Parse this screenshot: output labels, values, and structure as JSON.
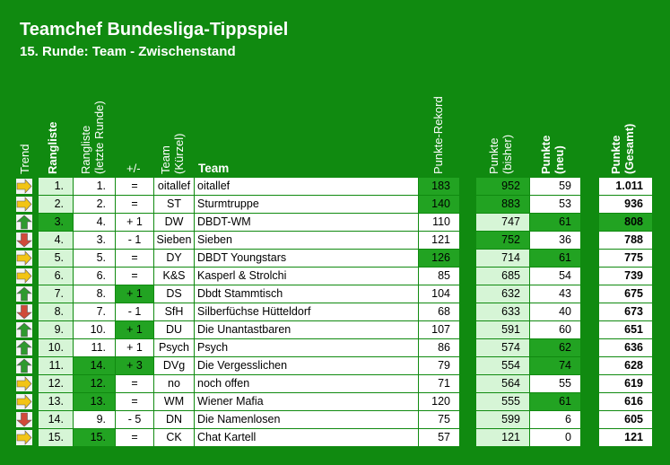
{
  "title": "Teamchef Bundesliga-Tippspiel",
  "subtitle": "15. Runde: Team - Zwischenstand",
  "headers": {
    "trend": "Trend",
    "rangliste": "Rangliste",
    "rangliste_letzte_1": "Rangliste",
    "rangliste_letzte_2": "(letzte Runde)",
    "plusminus": "+/-",
    "team_kuerzel_1": "Team",
    "team_kuerzel_2": "(Kürzel)",
    "team": "Team",
    "punkte_rekord": "Punkte-Rekord",
    "punkte_bisher_1": "Punkte",
    "punkte_bisher_2": "(bisher)",
    "punkte_neu_1": "Punkte",
    "punkte_neu_2": "(neu)",
    "punkte_gesamt_1": "Punkte",
    "punkte_gesamt_2": "(Gesamt)"
  },
  "colors": {
    "background": "#108a10",
    "light": "#d6f5d6",
    "white": "#ffffff",
    "highlight": "#22a322",
    "arrow_up": "#2e9a2e",
    "arrow_down": "#d04a3a",
    "arrow_same": "#f2c414"
  },
  "rows": [
    {
      "trend": "same",
      "rank": "1.",
      "last": "1.",
      "pm": "=",
      "short": "oitallef",
      "team": "oitallef",
      "rekord": "183",
      "bisher": "952",
      "neu": "59",
      "gesamt": "1.011",
      "hl": [
        "rekord",
        "bisher"
      ]
    },
    {
      "trend": "same",
      "rank": "2.",
      "last": "2.",
      "pm": "=",
      "short": "ST",
      "team": "Sturmtruppe",
      "rekord": "140",
      "bisher": "883",
      "neu": "53",
      "gesamt": "936",
      "hl": [
        "rekord",
        "bisher"
      ]
    },
    {
      "trend": "up",
      "rank": "3.",
      "last": "4.",
      "pm": "+ 1",
      "short": "DW",
      "team": "DBDT-WM",
      "rekord": "110",
      "bisher": "747",
      "neu": "61",
      "gesamt": "808",
      "hl": [
        "rank",
        "neu",
        "gesamt"
      ]
    },
    {
      "trend": "down",
      "rank": "4.",
      "last": "3.",
      "pm": "- 1",
      "short": "Sieben",
      "team": "Sieben",
      "rekord": "121",
      "bisher": "752",
      "neu": "36",
      "gesamt": "788",
      "hl": [
        "bisher"
      ]
    },
    {
      "trend": "same",
      "rank": "5.",
      "last": "5.",
      "pm": "=",
      "short": "DY",
      "team": "DBDT Youngstars",
      "rekord": "126",
      "bisher": "714",
      "neu": "61",
      "gesamt": "775",
      "hl": [
        "rekord",
        "neu"
      ]
    },
    {
      "trend": "same",
      "rank": "6.",
      "last": "6.",
      "pm": "=",
      "short": "K&S",
      "team": "Kasperl & Strolchi",
      "rekord": "85",
      "bisher": "685",
      "neu": "54",
      "gesamt": "739",
      "hl": []
    },
    {
      "trend": "up",
      "rank": "7.",
      "last": "8.",
      "pm": "+ 1",
      "short": "DS",
      "team": "Dbdt Stammtisch",
      "rekord": "104",
      "bisher": "632",
      "neu": "43",
      "gesamt": "675",
      "hl": [
        "pm"
      ]
    },
    {
      "trend": "down",
      "rank": "8.",
      "last": "7.",
      "pm": "- 1",
      "short": "SfH",
      "team": "Silberfüchse Hütteldorf",
      "rekord": "68",
      "bisher": "633",
      "neu": "40",
      "gesamt": "673",
      "hl": []
    },
    {
      "trend": "up",
      "rank": "9.",
      "last": "10.",
      "pm": "+ 1",
      "short": "DU",
      "team": "Die Unantastbaren",
      "rekord": "107",
      "bisher": "591",
      "neu": "60",
      "gesamt": "651",
      "hl": [
        "pm"
      ]
    },
    {
      "trend": "up",
      "rank": "10.",
      "last": "11.",
      "pm": "+ 1",
      "short": "Psych",
      "team": "Psych",
      "rekord": "86",
      "bisher": "574",
      "neu": "62",
      "gesamt": "636",
      "hl": [
        "neu"
      ]
    },
    {
      "trend": "up",
      "rank": "11.",
      "last": "14.",
      "pm": "+ 3",
      "short": "DVg",
      "team": "Die Vergesslichen",
      "rekord": "79",
      "bisher": "554",
      "neu": "74",
      "gesamt": "628",
      "hl": [
        "last",
        "pm",
        "neu"
      ]
    },
    {
      "trend": "same",
      "rank": "12.",
      "last": "12.",
      "pm": "=",
      "short": "no",
      "team": "noch offen",
      "rekord": "71",
      "bisher": "564",
      "neu": "55",
      "gesamt": "619",
      "hl": [
        "last"
      ]
    },
    {
      "trend": "same",
      "rank": "13.",
      "last": "13.",
      "pm": "=",
      "short": "WM",
      "team": "Wiener Mafia",
      "rekord": "120",
      "bisher": "555",
      "neu": "61",
      "gesamt": "616",
      "hl": [
        "last",
        "neu"
      ]
    },
    {
      "trend": "down",
      "rank": "14.",
      "last": "9.",
      "pm": "- 5",
      "short": "DN",
      "team": "Die Namenlosen",
      "rekord": "75",
      "bisher": "599",
      "neu": "6",
      "gesamt": "605",
      "hl": []
    },
    {
      "trend": "same",
      "rank": "15.",
      "last": "15.",
      "pm": "=",
      "short": "CK",
      "team": "Chat Kartell",
      "rekord": "57",
      "bisher": "121",
      "neu": "0",
      "gesamt": "121",
      "hl": [
        "last"
      ]
    }
  ]
}
